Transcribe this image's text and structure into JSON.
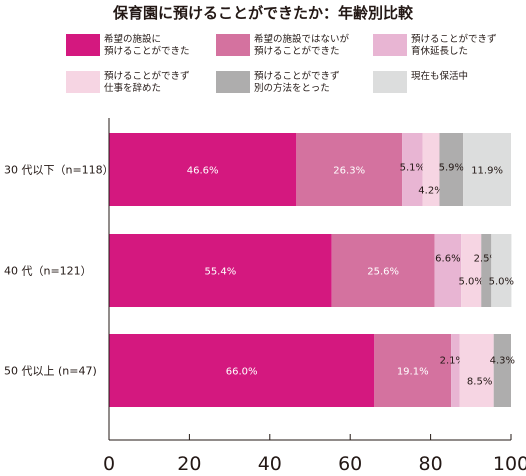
{
  "title": "保育園に預けることができたか：年齢別比較",
  "legend": [
    {
      "label": "希望の施設に\n預けることができた",
      "color": "#d4187f"
    },
    {
      "label": "希望の施設ではないが\n預けることができた",
      "color": "#d4729f"
    },
    {
      "label": "預けることができず\n育休延長した",
      "color": "#e8b5d3"
    },
    {
      "label": "預けることができず\n仕事を辞めた",
      "color": "#f6d5e3"
    },
    {
      "label": "預けることができず\n別の方法をとった",
      "color": "#aeadad"
    },
    {
      "label": "現在も保活中",
      "color": "#dcdddd"
    }
  ],
  "chart_data": {
    "type": "bar",
    "orientation": "horizontal",
    "stacked": true,
    "categories": [
      "30 代以下（n=118）",
      "40 代（n=121）",
      "50 代以上 (n=47)"
    ],
    "series": [
      {
        "name": "希望の施設に預けることができた",
        "values": [
          46.6,
          55.4,
          66.0
        ],
        "color": "#d4187f"
      },
      {
        "name": "希望の施設ではないが預けることができた",
        "values": [
          26.3,
          25.6,
          19.1
        ],
        "color": "#d4729f"
      },
      {
        "name": "預けることができず育休延長した",
        "values": [
          5.1,
          6.6,
          2.1
        ],
        "color": "#e8b5d3"
      },
      {
        "name": "預けることができず仕事を辞めた",
        "values": [
          4.2,
          5.0,
          8.5
        ],
        "color": "#f6d5e3"
      },
      {
        "name": "預けることができず別の方法をとった",
        "values": [
          5.9,
          2.5,
          4.3
        ],
        "color": "#aeadad"
      },
      {
        "name": "現在も保活中",
        "values": [
          11.9,
          5.0,
          0.0
        ],
        "color": "#dcdddd"
      }
    ],
    "data_labels": [
      [
        "46.6%",
        "26.3%",
        "5.1%",
        "4.2%",
        "5.9%",
        "11.9%"
      ],
      [
        "55.4%",
        "25.6%",
        "6.6%",
        "5.0%",
        "2.5%",
        "5.0%"
      ],
      [
        "66.0%",
        "19.1%",
        "2.1%",
        "8.5%",
        "4.3%",
        ""
      ]
    ],
    "xticks": [
      "0",
      "20",
      "40",
      "60",
      "80",
      "100"
    ],
    "xlim": [
      0,
      100
    ],
    "grid": false
  }
}
